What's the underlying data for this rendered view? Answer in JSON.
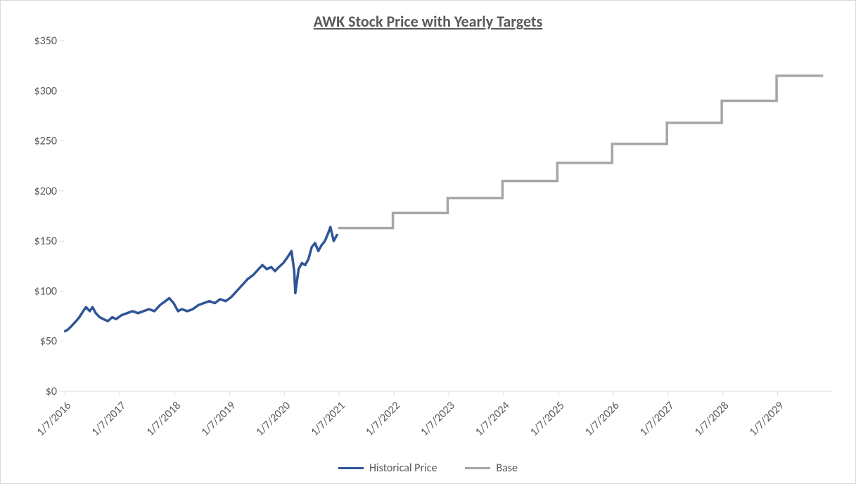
{
  "chart": {
    "type": "line",
    "title": "AWK Stock Price with Yearly Targets",
    "title_fontsize": 22,
    "title_color": "#595959",
    "title_underline": true,
    "background_color": "#ffffff",
    "border_color": "#d9d9d9",
    "axis_line_color": "#d9d9d9",
    "tick_label_color": "#595959",
    "tick_label_fontsize": 16,
    "y_axis": {
      "min": 0,
      "max": 350,
      "tick_step": 50,
      "tick_prefix": "$",
      "ticks": [
        0,
        50,
        100,
        150,
        200,
        250,
        300,
        350
      ]
    },
    "x_axis": {
      "start_year": 2016,
      "end_year_exclusive": 2030,
      "tick_label_format": "1/7/YYYY",
      "tick_years": [
        2016,
        2017,
        2018,
        2019,
        2020,
        2021,
        2022,
        2023,
        2024,
        2025,
        2026,
        2027,
        2028,
        2029
      ],
      "tick_rotation_deg": -45
    },
    "series": [
      {
        "name": "Historical Price",
        "color": "#2f5597",
        "line_width": 3.5,
        "style": "solid",
        "data": [
          [
            2016.02,
            60
          ],
          [
            2016.08,
            62
          ],
          [
            2016.15,
            66
          ],
          [
            2016.22,
            70
          ],
          [
            2016.28,
            74
          ],
          [
            2016.35,
            80
          ],
          [
            2016.4,
            84
          ],
          [
            2016.47,
            80
          ],
          [
            2016.52,
            84
          ],
          [
            2016.58,
            78
          ],
          [
            2016.65,
            74
          ],
          [
            2016.72,
            72
          ],
          [
            2016.8,
            70
          ],
          [
            2016.88,
            74
          ],
          [
            2016.95,
            72
          ],
          [
            2017.05,
            76
          ],
          [
            2017.15,
            78
          ],
          [
            2017.25,
            80
          ],
          [
            2017.35,
            78
          ],
          [
            2017.45,
            80
          ],
          [
            2017.55,
            82
          ],
          [
            2017.65,
            80
          ],
          [
            2017.75,
            86
          ],
          [
            2017.85,
            90
          ],
          [
            2017.92,
            93
          ],
          [
            2018.0,
            88
          ],
          [
            2018.08,
            80
          ],
          [
            2018.15,
            82
          ],
          [
            2018.25,
            80
          ],
          [
            2018.35,
            82
          ],
          [
            2018.45,
            86
          ],
          [
            2018.55,
            88
          ],
          [
            2018.65,
            90
          ],
          [
            2018.75,
            88
          ],
          [
            2018.85,
            92
          ],
          [
            2018.95,
            90
          ],
          [
            2019.05,
            94
          ],
          [
            2019.15,
            100
          ],
          [
            2019.25,
            106
          ],
          [
            2019.35,
            112
          ],
          [
            2019.45,
            116
          ],
          [
            2019.55,
            122
          ],
          [
            2019.62,
            126
          ],
          [
            2019.7,
            122
          ],
          [
            2019.78,
            124
          ],
          [
            2019.85,
            120
          ],
          [
            2019.92,
            124
          ],
          [
            2020.0,
            128
          ],
          [
            2020.08,
            134
          ],
          [
            2020.15,
            140
          ],
          [
            2020.2,
            120
          ],
          [
            2020.22,
            98
          ],
          [
            2020.28,
            122
          ],
          [
            2020.34,
            128
          ],
          [
            2020.4,
            126
          ],
          [
            2020.46,
            132
          ],
          [
            2020.52,
            144
          ],
          [
            2020.58,
            148
          ],
          [
            2020.64,
            140
          ],
          [
            2020.7,
            146
          ],
          [
            2020.76,
            150
          ],
          [
            2020.82,
            158
          ],
          [
            2020.86,
            164
          ],
          [
            2020.92,
            150
          ],
          [
            2020.98,
            156
          ]
        ]
      },
      {
        "name": "Base",
        "color": "#a6a6a6",
        "line_width": 3.5,
        "style": "step",
        "targets": [
          {
            "year_start": 2021,
            "year_end": 2022,
            "value": 163
          },
          {
            "year_start": 2022,
            "year_end": 2023,
            "value": 178
          },
          {
            "year_start": 2023,
            "year_end": 2024,
            "value": 193
          },
          {
            "year_start": 2024,
            "year_end": 2025,
            "value": 210
          },
          {
            "year_start": 2025,
            "year_end": 2026,
            "value": 228
          },
          {
            "year_start": 2026,
            "year_end": 2027,
            "value": 247
          },
          {
            "year_start": 2027,
            "year_end": 2028,
            "value": 268
          },
          {
            "year_start": 2028,
            "year_end": 2029,
            "value": 290
          },
          {
            "year_start": 2029,
            "year_end": 2029.85,
            "value": 315
          }
        ]
      }
    ],
    "legend": {
      "position": "bottom",
      "items": [
        {
          "label": "Historical Price",
          "color": "#2f5597"
        },
        {
          "label": "Base",
          "color": "#a6a6a6"
        }
      ],
      "fontsize": 16,
      "text_color": "#595959",
      "swatch_line_width": 3.5
    }
  }
}
